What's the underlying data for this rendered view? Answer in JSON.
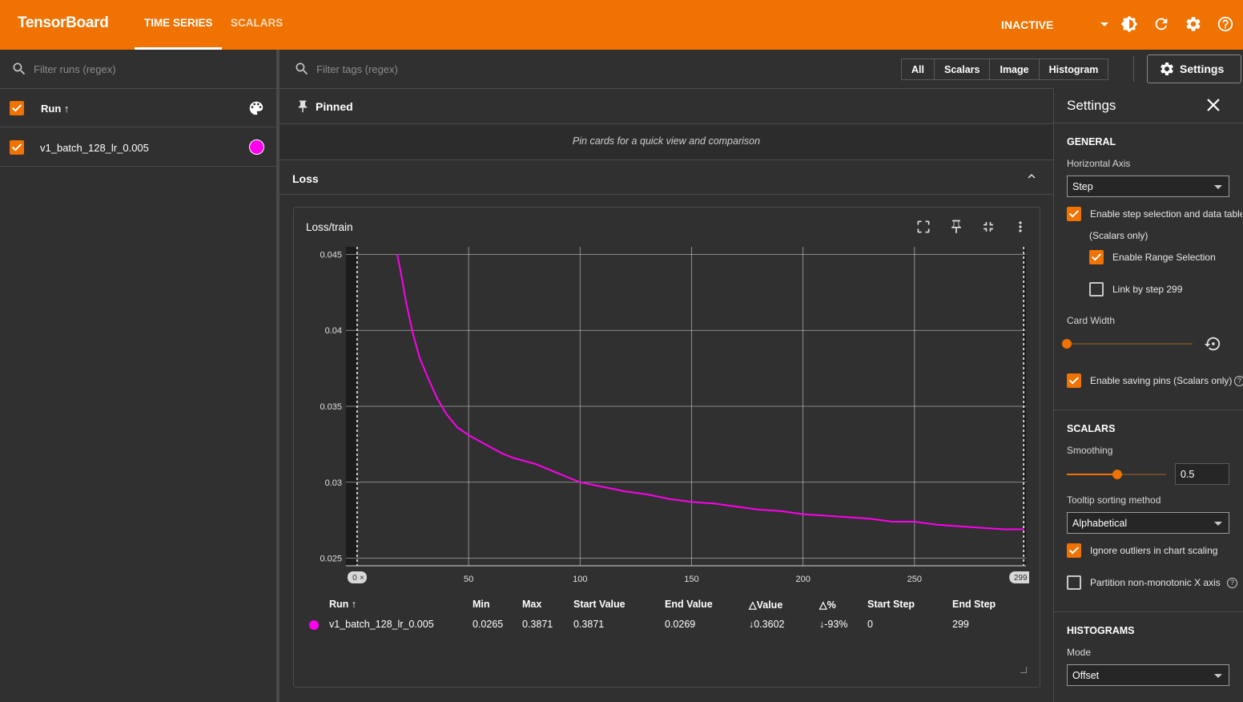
{
  "app": {
    "brand": "TensorBoard",
    "tabs": [
      "TIME SERIES",
      "SCALARS"
    ],
    "status": "INACTIVE"
  },
  "runs_panel": {
    "filter_placeholder": "Filter runs (regex)",
    "header_label": "Run ↑",
    "runs": [
      {
        "name": "v1_batch_128_lr_0.005",
        "color": "#ff00ee",
        "checked": true
      }
    ]
  },
  "main": {
    "filter_placeholder": "Filter tags (regex)",
    "type_filters": [
      "All",
      "Scalars",
      "Image",
      "Histogram"
    ],
    "settings_button": "Settings",
    "pinned": {
      "title": "Pinned",
      "empty_text": "Pin cards for a quick view and comparison"
    },
    "group": {
      "title": "Loss"
    },
    "card": {
      "title": "Loss/train",
      "range_start_label": "0",
      "range_end_label": "299",
      "table": {
        "headers": [
          "Run ↑",
          "Min",
          "Max",
          "Start Value",
          "End Value",
          "△Value",
          "△%",
          "Start Step",
          "End Step"
        ],
        "rows": [
          {
            "run": "v1_batch_128_lr_0.005",
            "min": "0.0265",
            "max": "0.3871",
            "start_value": "0.3871",
            "end_value": "0.0269",
            "delta_value": "↓0.3602",
            "delta_pct": "↓-93%",
            "start_step": "0",
            "end_step": "299"
          }
        ]
      }
    }
  },
  "settings": {
    "title": "Settings",
    "general": {
      "title": "GENERAL",
      "horizontal_axis_label": "Horizontal Axis",
      "horizontal_axis_value": "Step",
      "step_selection": "Enable step selection and data table",
      "scalars_only": "(Scalars only)",
      "range_selection": "Enable Range Selection",
      "link_by_step": "Link by step 299",
      "card_width_label": "Card Width",
      "saving_pins": "Enable saving pins (Scalars only)"
    },
    "scalars": {
      "title": "SCALARS",
      "smoothing_label": "Smoothing",
      "smoothing_value": "0.5",
      "tooltip_label": "Tooltip sorting method",
      "tooltip_value": "Alphabetical",
      "ignore_outliers": "Ignore outliers in chart scaling",
      "partition": "Partition non-monotonic X axis"
    },
    "histograms": {
      "title": "HISTOGRAMS",
      "mode_label": "Mode",
      "mode_value": "Offset"
    }
  },
  "chart_data": {
    "type": "line",
    "title": "Loss/train",
    "xlabel": "",
    "ylabel": "",
    "xlim": [
      -5,
      300
    ],
    "ylim": [
      0.0245,
      0.0455
    ],
    "x_ticks": [
      50,
      100,
      150,
      200,
      250
    ],
    "y_ticks": [
      0.025,
      0.03,
      0.035,
      0.04,
      0.045
    ],
    "y_tick_labels": [
      "0.025",
      "0.03",
      "0.035",
      "0.04",
      "0.045"
    ],
    "grid": true,
    "selected_range": [
      0,
      299
    ],
    "series": [
      {
        "name": "v1_batch_128_lr_0.005",
        "color": "#ff00ee",
        "x": [
          18,
          20,
          22,
          25,
          28,
          32,
          36,
          40,
          45,
          50,
          55,
          60,
          65,
          70,
          75,
          80,
          90,
          100,
          110,
          120,
          130,
          140,
          150,
          160,
          170,
          180,
          190,
          200,
          210,
          220,
          230,
          240,
          250,
          260,
          270,
          280,
          290,
          299
        ],
        "y": [
          0.045,
          0.0435,
          0.0418,
          0.0398,
          0.0382,
          0.0368,
          0.0355,
          0.0345,
          0.0336,
          0.0331,
          0.0327,
          0.0323,
          0.0319,
          0.0316,
          0.0314,
          0.0312,
          0.0306,
          0.03,
          0.0297,
          0.0294,
          0.0292,
          0.0289,
          0.0287,
          0.0286,
          0.0284,
          0.0282,
          0.0281,
          0.0279,
          0.0278,
          0.0277,
          0.0276,
          0.0274,
          0.0274,
          0.0272,
          0.0271,
          0.027,
          0.0269,
          0.0269
        ]
      }
    ]
  }
}
